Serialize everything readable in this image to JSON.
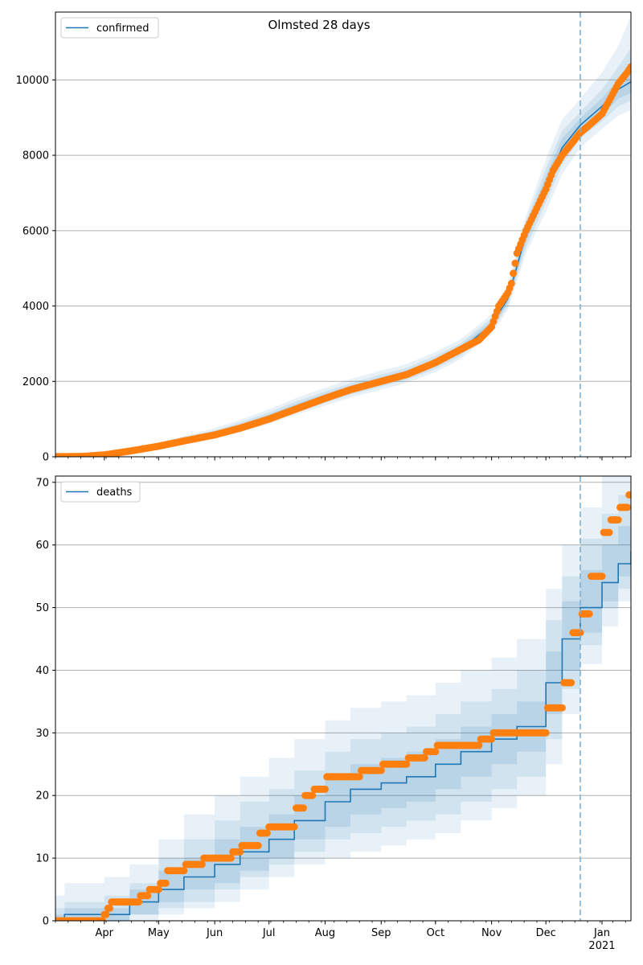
{
  "title": "Olmsted 28 days",
  "colors": {
    "model": "#1f77b4",
    "observed": "#ff7f0e",
    "band": "#1f77b4",
    "grid": "#b0b0b0",
    "forecast_line": "#7fb0d6"
  },
  "chart_data": [
    {
      "type": "line",
      "title": "Olmsted 28 days",
      "legend": "confirmed",
      "legend_position": "top-left",
      "grid": "y",
      "ylim": [
        0,
        11800
      ],
      "yticks": [
        0,
        2000,
        4000,
        6000,
        8000,
        10000
      ],
      "xlim": [
        "2020-03-05",
        "2021-01-17"
      ],
      "forecast_start": "2020-12-20",
      "series": [
        {
          "name": "confirmed",
          "kind": "model-median-with-bands",
          "x": [
            "2020-03-05",
            "2020-03-20",
            "2020-04-01",
            "2020-04-15",
            "2020-05-01",
            "2020-05-15",
            "2020-06-01",
            "2020-06-15",
            "2020-07-01",
            "2020-07-15",
            "2020-08-01",
            "2020-08-15",
            "2020-09-01",
            "2020-09-15",
            "2020-10-01",
            "2020-10-15",
            "2020-11-01",
            "2020-11-10",
            "2020-11-20",
            "2020-12-01",
            "2020-12-10",
            "2020-12-20",
            "2021-01-01",
            "2021-01-10",
            "2021-01-17"
          ],
          "y": [
            10,
            20,
            60,
            160,
            300,
            450,
            620,
            800,
            1050,
            1300,
            1580,
            1800,
            2020,
            2200,
            2500,
            2850,
            3500,
            4200,
            5900,
            7200,
            8200,
            8800,
            9300,
            9750,
            9950
          ],
          "bands": [
            {
              "lower": [
                0,
                0,
                30,
                120,
                240,
                360,
                500,
                650,
                870,
                1100,
                1360,
                1570,
                1780,
                1960,
                2250,
                2600,
                3250,
                3900,
                5400,
                6500,
                7500,
                8200,
                8700,
                9050,
                9200
              ],
              "upper": [
                40,
                60,
                110,
                220,
                380,
                550,
                760,
                980,
                1260,
                1540,
                1830,
                2060,
                2290,
                2460,
                2780,
                3120,
                3780,
                4550,
                6400,
                7900,
                8950,
                9500,
                10200,
                10900,
                11700
              ]
            },
            {
              "lower": [
                0,
                5,
                40,
                135,
                260,
                390,
                540,
                700,
                920,
                1160,
                1430,
                1650,
                1860,
                2040,
                2330,
                2680,
                3330,
                4000,
                5550,
                6750,
                7750,
                8450,
                8900,
                9300,
                9450
              ],
              "upper": [
                25,
                40,
                85,
                190,
                345,
                510,
                700,
                910,
                1180,
                1450,
                1730,
                1950,
                2180,
                2360,
                2680,
                3020,
                3680,
                4420,
                6250,
                7650,
                8650,
                9150,
                9750,
                10350,
                10850
              ]
            },
            {
              "lower": [
                2,
                10,
                50,
                145,
                275,
                415,
                575,
                740,
                975,
                1215,
                1490,
                1710,
                1920,
                2110,
                2400,
                2750,
                3400,
                4080,
                5700,
                6950,
                7950,
                8620,
                9080,
                9500,
                9650
              ],
              "upper": [
                18,
                30,
                72,
                175,
                325,
                485,
                665,
                860,
                1120,
                1385,
                1665,
                1885,
                2115,
                2290,
                2600,
                2950,
                3600,
                4320,
                6100,
                7450,
                8450,
                8980,
                9520,
                10000,
                10300
              ]
            }
          ]
        },
        {
          "name": "observed",
          "kind": "points",
          "x": [
            "2020-03-05",
            "2020-03-20",
            "2020-04-01",
            "2020-04-15",
            "2020-05-01",
            "2020-05-15",
            "2020-06-01",
            "2020-06-15",
            "2020-07-01",
            "2020-07-15",
            "2020-08-01",
            "2020-08-15",
            "2020-09-01",
            "2020-09-15",
            "2020-10-01",
            "2020-10-15",
            "2020-10-25",
            "2020-11-01",
            "2020-11-05",
            "2020-11-10",
            "2020-11-12",
            "2020-11-15",
            "2020-11-20",
            "2020-11-25",
            "2020-12-01",
            "2020-12-05",
            "2020-12-10",
            "2020-12-15",
            "2020-12-20",
            "2020-12-25",
            "2021-01-01",
            "2021-01-05",
            "2021-01-10",
            "2021-01-15",
            "2021-01-17"
          ],
          "y": [
            5,
            10,
            50,
            150,
            280,
            420,
            580,
            760,
            1000,
            1250,
            1550,
            1780,
            2000,
            2180,
            2500,
            2850,
            3100,
            3450,
            4000,
            4350,
            4600,
            5400,
            6000,
            6500,
            7100,
            7600,
            8000,
            8300,
            8600,
            8800,
            9100,
            9450,
            9900,
            10200,
            10350
          ]
        }
      ]
    },
    {
      "type": "line",
      "legend": "deaths",
      "legend_position": "top-left",
      "grid": "y",
      "ylim": [
        0,
        71
      ],
      "yticks": [
        0,
        10,
        20,
        30,
        40,
        50,
        60,
        70
      ],
      "xlim": [
        "2020-03-05",
        "2021-01-17"
      ],
      "xticks": [
        "Apr",
        "May",
        "Jun",
        "Jul",
        "Aug",
        "Sep",
        "Oct",
        "Nov",
        "Dec",
        "Jan"
      ],
      "xtick_dates": [
        "2020-04-01",
        "2020-05-01",
        "2020-06-01",
        "2020-07-01",
        "2020-08-01",
        "2020-09-01",
        "2020-10-01",
        "2020-11-01",
        "2020-12-01",
        "2021-01-01"
      ],
      "year_label": "2021",
      "forecast_start": "2020-12-20",
      "series": [
        {
          "name": "deaths",
          "kind": "model-median-with-bands",
          "step": true,
          "x": [
            "2020-03-05",
            "2020-03-10",
            "2020-04-01",
            "2020-04-15",
            "2020-05-01",
            "2020-05-15",
            "2020-06-01",
            "2020-06-15",
            "2020-07-01",
            "2020-07-15",
            "2020-08-01",
            "2020-08-15",
            "2020-09-01",
            "2020-09-15",
            "2020-10-01",
            "2020-10-15",
            "2020-11-01",
            "2020-11-15",
            "2020-12-01",
            "2020-12-10",
            "2020-12-20",
            "2021-01-01",
            "2021-01-10",
            "2021-01-17"
          ],
          "y": [
            0,
            1,
            1,
            3,
            5,
            7,
            9,
            11,
            13,
            16,
            19,
            21,
            22,
            23,
            25,
            27,
            29,
            31,
            38,
            45,
            50,
            54,
            57,
            59
          ],
          "bands": [
            {
              "lower": [
                0,
                0,
                0,
                0,
                1,
                2,
                3,
                5,
                7,
                9,
                10,
                11,
                12,
                13,
                14,
                16,
                18,
                20,
                25,
                33,
                41,
                47,
                51,
                54
              ],
              "upper": [
                4,
                6,
                7,
                9,
                13,
                17,
                20,
                23,
                26,
                29,
                32,
                34,
                35,
                36,
                38,
                40,
                42,
                45,
                53,
                60,
                66,
                71,
                74,
                76
              ]
            },
            {
              "lower": [
                0,
                0,
                0,
                1,
                2,
                3,
                5,
                7,
                9,
                11,
                13,
                14,
                15,
                16,
                17,
                19,
                21,
                23,
                29,
                37,
                44,
                50,
                53,
                56
              ],
              "upper": [
                2,
                3,
                4,
                6,
                10,
                13,
                16,
                19,
                21,
                24,
                27,
                29,
                30,
                31,
                33,
                35,
                37,
                40,
                48,
                55,
                61,
                65,
                68,
                70
              ]
            },
            {
              "lower": [
                0,
                0,
                0,
                1,
                3,
                5,
                6,
                8,
                10,
                13,
                15,
                17,
                18,
                19,
                21,
                23,
                25,
                27,
                33,
                40,
                46,
                51,
                55,
                57
              ],
              "upper": [
                1,
                2,
                2,
                5,
                8,
                10,
                13,
                15,
                17,
                20,
                23,
                25,
                26,
                27,
                29,
                31,
                33,
                35,
                43,
                51,
                56,
                60,
                63,
                65
              ]
            }
          ]
        },
        {
          "name": "observed",
          "kind": "points",
          "step": true,
          "x": [
            "2020-03-05",
            "2020-03-31",
            "2020-04-02",
            "2020-04-04",
            "2020-04-20",
            "2020-04-25",
            "2020-05-01",
            "2020-05-05",
            "2020-05-15",
            "2020-05-25",
            "2020-06-10",
            "2020-06-15",
            "2020-06-25",
            "2020-06-30",
            "2020-07-05",
            "2020-07-15",
            "2020-07-20",
            "2020-07-25",
            "2020-08-01",
            "2020-08-15",
            "2020-08-20",
            "2020-09-01",
            "2020-09-15",
            "2020-09-25",
            "2020-10-01",
            "2020-10-15",
            "2020-10-25",
            "2020-11-01",
            "2020-11-20",
            "2020-12-01",
            "2020-12-10",
            "2020-12-15",
            "2020-12-20",
            "2020-12-25",
            "2021-01-01",
            "2021-01-05",
            "2021-01-10",
            "2021-01-15",
            "2021-01-17"
          ],
          "y": [
            0,
            1,
            2,
            3,
            4,
            5,
            6,
            8,
            9,
            10,
            11,
            12,
            14,
            15,
            15,
            18,
            20,
            21,
            23,
            23,
            24,
            25,
            26,
            27,
            28,
            28,
            29,
            30,
            30,
            34,
            38,
            46,
            49,
            55,
            62,
            64,
            66,
            68,
            70
          ]
        }
      ]
    }
  ]
}
